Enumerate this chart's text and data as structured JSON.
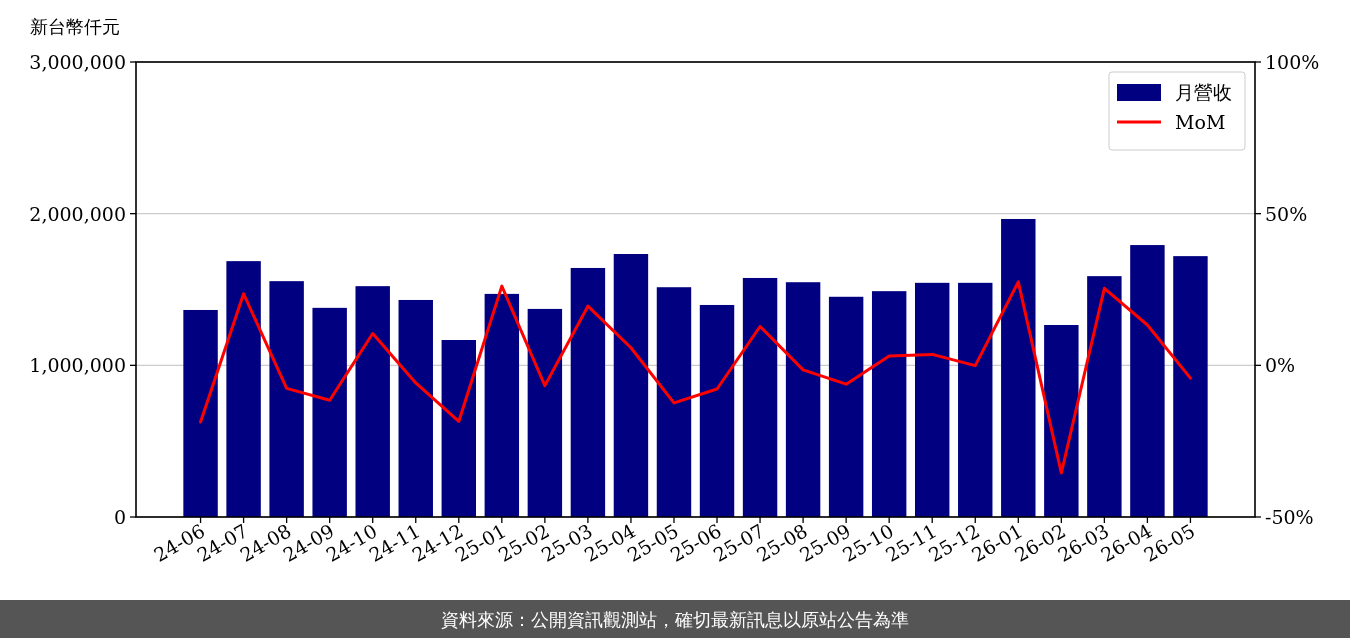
{
  "chart_data": {
    "type": "bar",
    "ylabel": "新台幣仟元",
    "categories": [
      "24-06",
      "24-07",
      "24-08",
      "24-09",
      "24-10",
      "24-11",
      "24-12",
      "25-01",
      "25-02",
      "25-03",
      "25-04",
      "25-05",
      "25-06",
      "25-07",
      "25-08",
      "25-09",
      "25-10",
      "25-11",
      "25-12",
      "26-01",
      "26-02",
      "26-03",
      "26-04",
      "26-05"
    ],
    "series": [
      {
        "name": "月營收",
        "color": "#000080",
        "values": [
          1365000,
          1687000,
          1555000,
          1379000,
          1522000,
          1431000,
          1167000,
          1471000,
          1372000,
          1642000,
          1734000,
          1515000,
          1398000,
          1576000,
          1548000,
          1452000,
          1489000,
          1544000,
          1544000,
          1965000,
          1266000,
          1588000,
          1793000,
          1720000
        ]
      },
      {
        "name": "MoM",
        "type": "line",
        "axis": "y2",
        "color": "#ff0000",
        "values": [
          -18.7,
          23.6,
          -7.6,
          -11.5,
          10.5,
          -5.8,
          -18.5,
          26.1,
          -6.7,
          19.5,
          5.8,
          -12.4,
          -7.8,
          12.8,
          -1.5,
          -6.2,
          3.1,
          3.6,
          -0.1,
          27.5,
          -35.5,
          25.4,
          13.3,
          -4.2
        ]
      }
    ],
    "ylim": [
      0,
      3000000
    ],
    "yticks": [
      {
        "value": 0,
        "label": "0"
      },
      {
        "value": 1000000,
        "label": "1,000,000"
      },
      {
        "value": 2000000,
        "label": "2,000,000"
      },
      {
        "value": 3000000,
        "label": "3,000,000"
      }
    ],
    "y2lim": [
      -50,
      100
    ],
    "y2ticks": [
      {
        "value": -50,
        "label": "-50%"
      },
      {
        "value": 0,
        "label": "0%"
      },
      {
        "value": 50,
        "label": "50%"
      },
      {
        "value": 100,
        "label": "100%"
      }
    ],
    "grid": "y",
    "legend": "top right",
    "annotations": [
      "資料來源：公開資訊觀測站，確切最新訊息以原站公告為準"
    ]
  }
}
